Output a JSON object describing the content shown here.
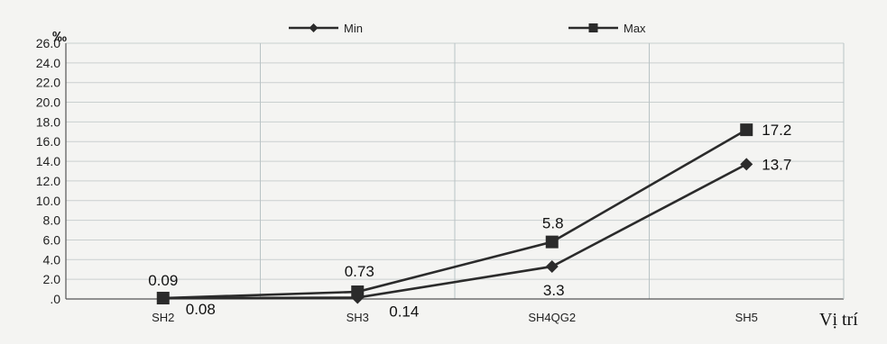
{
  "chart_data": {
    "type": "line",
    "categories": [
      "SH2",
      "SH3",
      "SH4QG2",
      "SH5"
    ],
    "ylabel": "‰",
    "xlabel": "Vị trí",
    "ylim": [
      0,
      26
    ],
    "yticks": [
      ".0",
      "2.0",
      "4.0",
      "6.0",
      "8.0",
      "10.0",
      "12.0",
      "14.0",
      "16.0",
      "18.0",
      "20.0",
      "22.0",
      "24.0",
      "26.0"
    ],
    "grid": true,
    "legend_position": "top",
    "series": [
      {
        "name": "Min",
        "marker": "diamond",
        "values": [
          0.08,
          0.14,
          3.3,
          13.7
        ],
        "labels": [
          "0.08",
          "0.14",
          "3.3",
          "13.7"
        ]
      },
      {
        "name": "Max",
        "marker": "square",
        "values": [
          0.09,
          0.73,
          5.8,
          17.2
        ],
        "labels": [
          "0.09",
          "0.73",
          "5.8",
          "17.2"
        ]
      }
    ],
    "line_color": "#2b2b2b"
  }
}
